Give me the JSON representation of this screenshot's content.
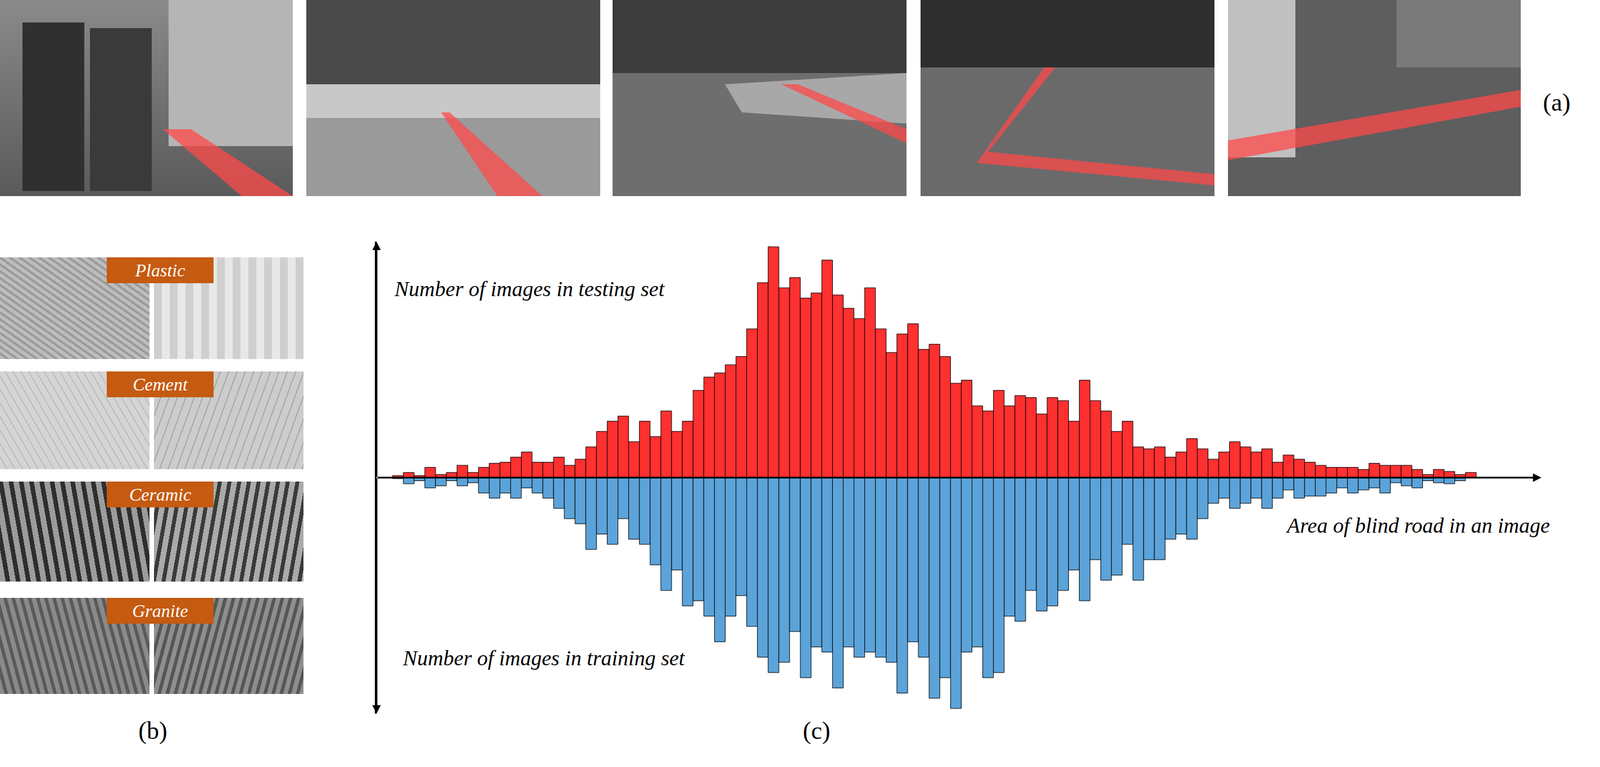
{
  "panel_labels": [
    "(a)",
    "(b)",
    "(c)"
  ],
  "materials": [
    "Plastic",
    "Cement",
    "Ceramic",
    "Granite"
  ],
  "chart_data": {
    "type": "bar",
    "xlabel": "Area of blind road in an image",
    "categories": [
      null,
      null,
      null,
      null,
      null,
      null,
      null,
      null,
      null,
      null,
      null,
      null,
      null,
      null,
      null,
      null,
      null,
      null,
      null,
      null,
      null,
      null,
      null,
      null,
      null,
      null,
      null,
      null,
      null,
      null,
      null,
      null,
      null,
      null,
      null,
      null,
      null,
      null,
      null,
      null,
      null,
      null,
      null,
      null,
      null,
      null,
      null,
      null,
      null,
      null,
      null,
      null,
      null,
      null,
      null,
      null,
      null,
      null,
      null,
      null,
      null,
      null,
      null,
      null,
      null,
      null,
      null,
      null,
      null,
      null,
      null,
      null,
      null,
      null,
      null,
      null,
      null,
      null,
      null,
      null,
      null,
      null,
      null,
      null,
      null,
      null,
      null,
      null,
      null,
      null,
      null,
      null,
      null,
      null,
      null,
      null,
      null,
      null,
      null,
      null,
      null
    ],
    "ylim": [
      0,
      230
    ],
    "tick_labels": false,
    "grid": false,
    "series": [
      {
        "name": "Number of images in testing set",
        "color": "#ff3030",
        "values": [
          2,
          5,
          2,
          10,
          3,
          5,
          12,
          5,
          10,
          14,
          15,
          20,
          25,
          15,
          15,
          20,
          12,
          18,
          30,
          45,
          55,
          60,
          35,
          55,
          40,
          65,
          45,
          55,
          85,
          98,
          102,
          110,
          118,
          145,
          190,
          225,
          185,
          195,
          175,
          180,
          212,
          178,
          165,
          155,
          185,
          145,
          122,
          140,
          150,
          125,
          130,
          118,
          92,
          95,
          70,
          65,
          85,
          70,
          80,
          78,
          62,
          78,
          75,
          55,
          95,
          75,
          65,
          45,
          55,
          30,
          28,
          30,
          20,
          25,
          38,
          28,
          18,
          25,
          35,
          30,
          25,
          28,
          15,
          22,
          18,
          15,
          12,
          10,
          10,
          10,
          8,
          14,
          12,
          12,
          12,
          8,
          3,
          8,
          6,
          3,
          5
        ]
      },
      {
        "name": "Number of images in training set",
        "color": "#5ba3d9",
        "values": [
          1,
          6,
          3,
          10,
          8,
          3,
          8,
          5,
          15,
          20,
          15,
          20,
          10,
          15,
          20,
          30,
          40,
          45,
          70,
          55,
          65,
          40,
          60,
          65,
          85,
          110,
          90,
          125,
          120,
          135,
          160,
          135,
          115,
          145,
          175,
          190,
          180,
          150,
          195,
          165,
          170,
          205,
          165,
          175,
          170,
          175,
          180,
          210,
          160,
          175,
          215,
          195,
          225,
          170,
          165,
          195,
          190,
          135,
          140,
          110,
          130,
          125,
          110,
          90,
          120,
          80,
          100,
          95,
          65,
          100,
          80,
          80,
          60,
          55,
          60,
          40,
          25,
          20,
          30,
          25,
          20,
          30,
          20,
          12,
          20,
          18,
          18,
          15,
          10,
          15,
          12,
          10,
          15,
          5,
          8,
          10,
          3,
          5,
          6,
          3,
          0
        ]
      }
    ]
  }
}
